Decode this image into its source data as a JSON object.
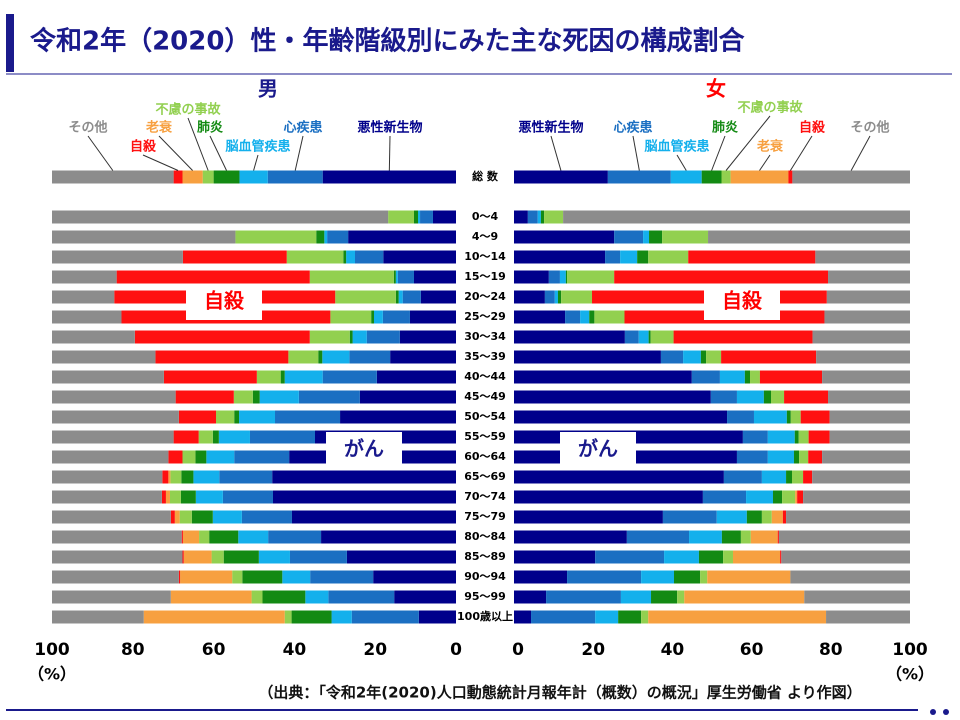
{
  "title": "令和2年（2020）性・年齢階級別にみた主な死因の構成割合",
  "source": "（出典：「令和2年(2020)人口動態統計月報年計（概数）の概況」厚生労働省 より作図）",
  "chart_data": [
    {
      "type": "bar",
      "orientation": "horizontal",
      "stacked": true,
      "x_reversed": true,
      "subtitle": "男",
      "categories": [
        "総 数",
        null,
        "0〜4",
        "4〜9",
        "10〜14",
        "15〜19",
        "20〜24",
        "25〜29",
        "30〜34",
        "35〜39",
        "40〜44",
        "45〜49",
        "50〜54",
        "55〜59",
        "60〜64",
        "65〜69",
        "70〜74",
        "75〜79",
        "80〜84",
        "85〜89",
        "90〜94",
        "95〜99",
        "100歳以上"
      ],
      "series": [
        {
          "name": "悪性新生物",
          "color": "#00008b",
          "values": [
            33,
            null,
            5.7,
            26.7,
            18,
            10.4,
            8.7,
            11.4,
            13.9,
            16.3,
            19.6,
            23.8,
            28.7,
            34.9,
            41.3,
            45.5,
            45.3,
            40.6,
            33.4,
            27,
            20.5,
            15.3,
            9.2
          ]
        },
        {
          "name": "心疾患",
          "color": "#1b6fc2",
          "values": [
            13.6,
            null,
            3.2,
            5.2,
            7,
            4,
            4.5,
            6.7,
            8.2,
            10.1,
            13.4,
            15.1,
            16.1,
            16.1,
            13.6,
            13.1,
            12.4,
            12.4,
            13.1,
            14.1,
            15.6,
            16.3,
            16.6
          ]
        },
        {
          "name": "脳血管疾患",
          "color": "#14b0ec",
          "values": [
            7,
            null,
            0.5,
            0.7,
            2.2,
            0.5,
            1,
            2.2,
            3.5,
            6.7,
            9.4,
            9.7,
            8.9,
            7.7,
            6.9,
            6.4,
            6.7,
            7.2,
            7.4,
            7.7,
            6.9,
            5.7,
            5
          ]
        },
        {
          "name": "肺炎",
          "color": "#138a13",
          "values": [
            6.4,
            null,
            1,
            2,
            0.7,
            0.5,
            0.7,
            0.7,
            0.7,
            1,
            1,
            1.7,
            1.2,
            1.5,
            2.7,
            3,
            3.7,
            5.2,
            7.2,
            8.7,
            9.9,
            10.6,
            9.9
          ]
        },
        {
          "name": "不慮の事故",
          "color": "#92d050",
          "values": [
            2.7,
            null,
            6.4,
            20,
            14,
            20.8,
            15,
            10.1,
            9.9,
            7.4,
            5.9,
            4.7,
            4.5,
            3.5,
            3.2,
            2.7,
            2.7,
            3,
            2.5,
            3,
            2.5,
            2.7,
            1.7
          ]
        },
        {
          "name": "老衰",
          "color": "#f7a040",
          "values": [
            5,
            null,
            0,
            0,
            0,
            0,
            0,
            0,
            0,
            0,
            0,
            0,
            0,
            0,
            0,
            0.5,
            1,
            1.2,
            4,
            6.9,
            12.9,
            20,
            34.9
          ]
        },
        {
          "name": "自殺",
          "color": "#ff1010",
          "values": [
            2.2,
            null,
            0,
            0,
            25.7,
            47.8,
            54.7,
            51.7,
            43.3,
            32.9,
            23,
            14.4,
            9.2,
            6.2,
            3.5,
            1.5,
            1,
            1,
            0.3,
            0.3,
            0.3,
            0,
            0
          ]
        },
        {
          "name": "その他",
          "color": "#8c8c8c",
          "values": [
            30.1,
            null,
            83.2,
            45.4,
            32.4,
            16,
            15.4,
            17.2,
            20.5,
            25.6,
            27.7,
            30.6,
            31.4,
            30.1,
            28.8,
            27.3,
            27.2,
            29.4,
            32.1,
            32.3,
            31.4,
            29.4,
            22.7
          ]
        }
      ],
      "annotations": [
        "自殺",
        "がん"
      ],
      "xlim": [
        0,
        100
      ],
      "xticks": [
        0,
        20,
        40,
        60,
        80,
        100
      ],
      "x_unit": "（%）"
    },
    {
      "type": "bar",
      "orientation": "horizontal",
      "stacked": true,
      "x_reversed": false,
      "subtitle": "女",
      "series": [
        {
          "name": "悪性新生物",
          "color": "#00008b",
          "values": [
            23.7,
            null,
            3.5,
            25.3,
            23,
            8.8,
            7.8,
            12.9,
            28,
            37.1,
            44.9,
            49.7,
            53.8,
            57.8,
            56.3,
            53,
            47.7,
            37.6,
            28.5,
            20.5,
            13.4,
            8.1,
            4.3
          ]
        },
        {
          "name": "心疾患",
          "color": "#1b6fc2",
          "values": [
            15.9,
            null,
            2.5,
            7.3,
            3.8,
            2.8,
            2.5,
            3.8,
            3.5,
            5.6,
            7.1,
            6.6,
            6.8,
            6.3,
            7.8,
            9.6,
            10.9,
            13.6,
            15.7,
            17.4,
            18.7,
            18.9,
            16.2
          ]
        },
        {
          "name": "脳血管疾患",
          "color": "#14b0ec",
          "values": [
            7.8,
            null,
            0.8,
            1.5,
            4.3,
            1.5,
            0.8,
            2.3,
            2.5,
            4.5,
            6.3,
            6.8,
            8.3,
            6.8,
            6.6,
            6.1,
            6.8,
            7.6,
            8.3,
            8.8,
            8.3,
            7.6,
            5.8
          ]
        },
        {
          "name": "肺炎",
          "color": "#138a13",
          "values": [
            5,
            null,
            0.8,
            3.3,
            2.8,
            0.3,
            0.8,
            1.3,
            0.5,
            1.3,
            1.3,
            1.8,
            1,
            1,
            1.3,
            1.5,
            2.3,
            3.8,
            4.8,
            6.1,
            6.6,
            6.6,
            5.8
          ]
        },
        {
          "name": "不慮の事故",
          "color": "#92d050",
          "values": [
            2.3,
            null,
            4.8,
            11.6,
            10.1,
            11.9,
            7.8,
            7.6,
            5.8,
            3.8,
            2.5,
            3.3,
            2.5,
            2.5,
            2.3,
            2.8,
            3.3,
            2.5,
            2.5,
            2.5,
            1.8,
            1.8,
            1.8
          ]
        },
        {
          "name": "老衰",
          "color": "#f7a040",
          "values": [
            14.6,
            null,
            0,
            0,
            0,
            0,
            0,
            0,
            0,
            0,
            0,
            0,
            0,
            0,
            0,
            0,
            0.5,
            2.8,
            6.8,
            11.9,
            21,
            30.3,
            44.9
          ]
        },
        {
          "name": "自殺",
          "color": "#ff1010",
          "values": [
            1,
            null,
            0,
            0,
            32.1,
            54,
            59.3,
            50.5,
            35.1,
            24,
            15.7,
            11.1,
            7.3,
            5.3,
            3.5,
            2.3,
            1.5,
            0.8,
            0.3,
            0.3,
            0,
            0,
            0
          ]
        },
        {
          "name": "その他",
          "color": "#8c8c8c",
          "values": [
            29.7,
            null,
            87.6,
            51,
            23.9,
            20.7,
            21,
            21.6,
            24.6,
            23.7,
            22.2,
            20.7,
            20.3,
            20.3,
            22.2,
            24.7,
            27,
            31.3,
            33.1,
            32.5,
            30.2,
            26.7,
            21.2
          ]
        }
      ],
      "annotations": [
        "自殺",
        "がん"
      ],
      "xlim": [
        0,
        100
      ],
      "xticks": [
        0,
        20,
        40,
        60,
        80,
        100
      ],
      "x_unit": "（%）"
    }
  ]
}
